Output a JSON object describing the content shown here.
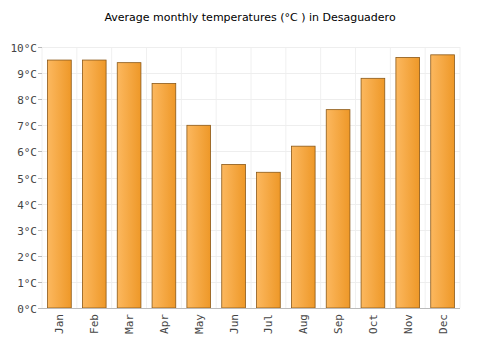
{
  "chart_data": {
    "type": "bar",
    "title": "Average monthly temperatures (°C ) in Desaguadero",
    "categories": [
      "Jan",
      "Feb",
      "Mar",
      "Apr",
      "May",
      "Jun",
      "Jul",
      "Aug",
      "Sep",
      "Oct",
      "Nov",
      "Dec"
    ],
    "values": [
      9.5,
      9.5,
      9.4,
      8.6,
      7.0,
      5.5,
      5.2,
      6.2,
      7.6,
      8.8,
      9.6,
      9.7
    ],
    "color": "#fba02a",
    "ylim": [
      0,
      10
    ],
    "yticks": [
      {
        "value": 0,
        "label": "0°C"
      },
      {
        "value": 1,
        "label": "1°C"
      },
      {
        "value": 2,
        "label": "2°C"
      },
      {
        "value": 3,
        "label": "3°C"
      },
      {
        "value": 4,
        "label": "4°C"
      },
      {
        "value": 5,
        "label": "5°C"
      },
      {
        "value": 6,
        "label": "6°C"
      },
      {
        "value": 7,
        "label": "7°C"
      },
      {
        "value": 8,
        "label": "8°C"
      },
      {
        "value": 9,
        "label": "9°C"
      },
      {
        "value": 10,
        "label": "10°C"
      }
    ],
    "grid": true
  }
}
